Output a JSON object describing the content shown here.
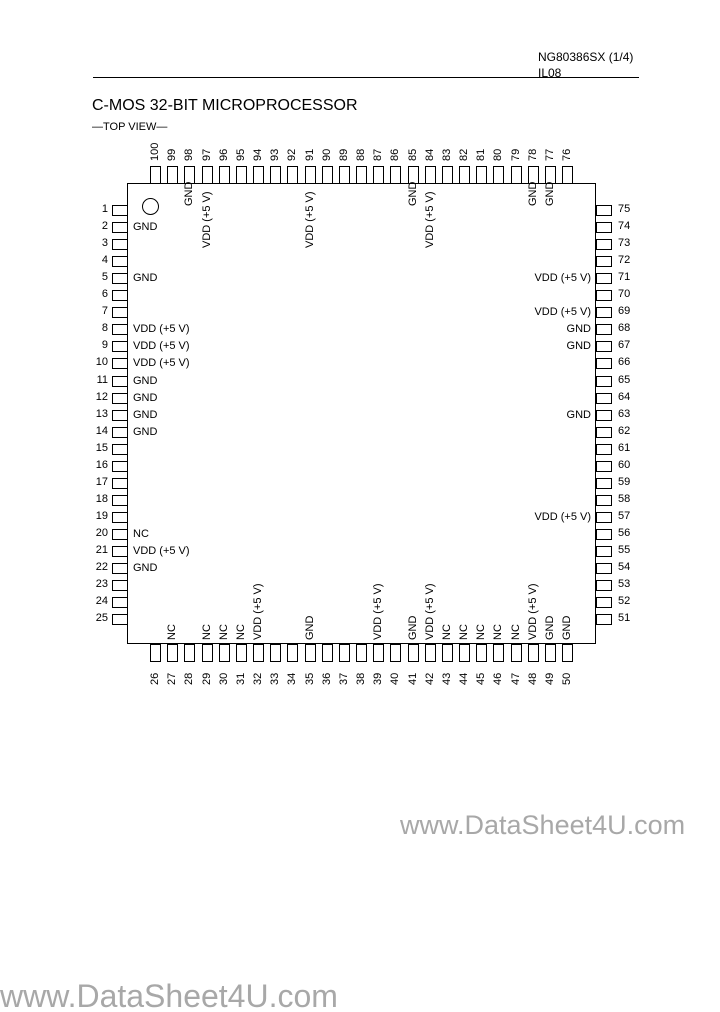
{
  "header": {
    "part_code": "NG80386SX (1/4)",
    "sub_code": "IL08"
  },
  "title": "C-MOS 32-BIT MICROPROCESSOR",
  "view_label": "—TOP VIEW—",
  "pins": {
    "left": [
      {
        "num": "1",
        "label": ""
      },
      {
        "num": "2",
        "label": "GND"
      },
      {
        "num": "3",
        "label": ""
      },
      {
        "num": "4",
        "label": ""
      },
      {
        "num": "5",
        "label": "GND"
      },
      {
        "num": "6",
        "label": ""
      },
      {
        "num": "7",
        "label": ""
      },
      {
        "num": "8",
        "label": "VDD (+5 V)"
      },
      {
        "num": "9",
        "label": "VDD (+5 V)"
      },
      {
        "num": "10",
        "label": "VDD (+5 V)"
      },
      {
        "num": "11",
        "label": "GND"
      },
      {
        "num": "12",
        "label": "GND"
      },
      {
        "num": "13",
        "label": "GND"
      },
      {
        "num": "14",
        "label": "GND"
      },
      {
        "num": "15",
        "label": ""
      },
      {
        "num": "16",
        "label": ""
      },
      {
        "num": "17",
        "label": ""
      },
      {
        "num": "18",
        "label": ""
      },
      {
        "num": "19",
        "label": ""
      },
      {
        "num": "20",
        "label": "NC"
      },
      {
        "num": "21",
        "label": "VDD (+5 V)"
      },
      {
        "num": "22",
        "label": "GND"
      },
      {
        "num": "23",
        "label": ""
      },
      {
        "num": "24",
        "label": ""
      },
      {
        "num": "25",
        "label": ""
      }
    ],
    "right": [
      {
        "num": "75",
        "label": ""
      },
      {
        "num": "74",
        "label": ""
      },
      {
        "num": "73",
        "label": ""
      },
      {
        "num": "72",
        "label": ""
      },
      {
        "num": "71",
        "label": "VDD (+5 V)"
      },
      {
        "num": "70",
        "label": ""
      },
      {
        "num": "69",
        "label": "VDD (+5 V)"
      },
      {
        "num": "68",
        "label": "GND"
      },
      {
        "num": "67",
        "label": "GND"
      },
      {
        "num": "66",
        "label": ""
      },
      {
        "num": "65",
        "label": ""
      },
      {
        "num": "64",
        "label": ""
      },
      {
        "num": "63",
        "label": "GND"
      },
      {
        "num": "62",
        "label": ""
      },
      {
        "num": "61",
        "label": ""
      },
      {
        "num": "60",
        "label": ""
      },
      {
        "num": "59",
        "label": ""
      },
      {
        "num": "58",
        "label": ""
      },
      {
        "num": "57",
        "label": "VDD (+5 V)"
      },
      {
        "num": "56",
        "label": ""
      },
      {
        "num": "55",
        "label": ""
      },
      {
        "num": "54",
        "label": ""
      },
      {
        "num": "53",
        "label": ""
      },
      {
        "num": "52",
        "label": ""
      },
      {
        "num": "51",
        "label": ""
      }
    ],
    "top": [
      {
        "num": "100",
        "label": ""
      },
      {
        "num": "99",
        "label": ""
      },
      {
        "num": "98",
        "label": "GND"
      },
      {
        "num": "97",
        "label": "VDD (+5 V)"
      },
      {
        "num": "96",
        "label": ""
      },
      {
        "num": "95",
        "label": ""
      },
      {
        "num": "94",
        "label": ""
      },
      {
        "num": "93",
        "label": ""
      },
      {
        "num": "92",
        "label": ""
      },
      {
        "num": "91",
        "label": "VDD (+5 V)"
      },
      {
        "num": "90",
        "label": ""
      },
      {
        "num": "89",
        "label": ""
      },
      {
        "num": "88",
        "label": ""
      },
      {
        "num": "87",
        "label": ""
      },
      {
        "num": "86",
        "label": ""
      },
      {
        "num": "85",
        "label": "GND"
      },
      {
        "num": "84",
        "label": "VDD (+5 V)"
      },
      {
        "num": "83",
        "label": ""
      },
      {
        "num": "82",
        "label": ""
      },
      {
        "num": "81",
        "label": ""
      },
      {
        "num": "80",
        "label": ""
      },
      {
        "num": "79",
        "label": ""
      },
      {
        "num": "78",
        "label": "GND"
      },
      {
        "num": "77",
        "label": "GND"
      },
      {
        "num": "76",
        "label": ""
      }
    ],
    "bottom": [
      {
        "num": "26",
        "label": ""
      },
      {
        "num": "27",
        "label": "NC"
      },
      {
        "num": "28",
        "label": ""
      },
      {
        "num": "29",
        "label": "NC"
      },
      {
        "num": "30",
        "label": "NC"
      },
      {
        "num": "31",
        "label": "NC"
      },
      {
        "num": "32",
        "label": "VDD (+5 V)"
      },
      {
        "num": "33",
        "label": ""
      },
      {
        "num": "34",
        "label": ""
      },
      {
        "num": "35",
        "label": "GND"
      },
      {
        "num": "36",
        "label": ""
      },
      {
        "num": "37",
        "label": ""
      },
      {
        "num": "38",
        "label": ""
      },
      {
        "num": "39",
        "label": "VDD (+5 V)"
      },
      {
        "num": "40",
        "label": ""
      },
      {
        "num": "41",
        "label": "GND"
      },
      {
        "num": "42",
        "label": "VDD (+5 V)"
      },
      {
        "num": "43",
        "label": "NC"
      },
      {
        "num": "44",
        "label": "NC"
      },
      {
        "num": "45",
        "label": "NC"
      },
      {
        "num": "46",
        "label": "NC"
      },
      {
        "num": "47",
        "label": "NC"
      },
      {
        "num": "48",
        "label": "VDD (+5 V)"
      },
      {
        "num": "49",
        "label": "GND"
      },
      {
        "num": "50",
        "label": "GND"
      }
    ]
  },
  "watermark": "www.DataSheet4U.com"
}
